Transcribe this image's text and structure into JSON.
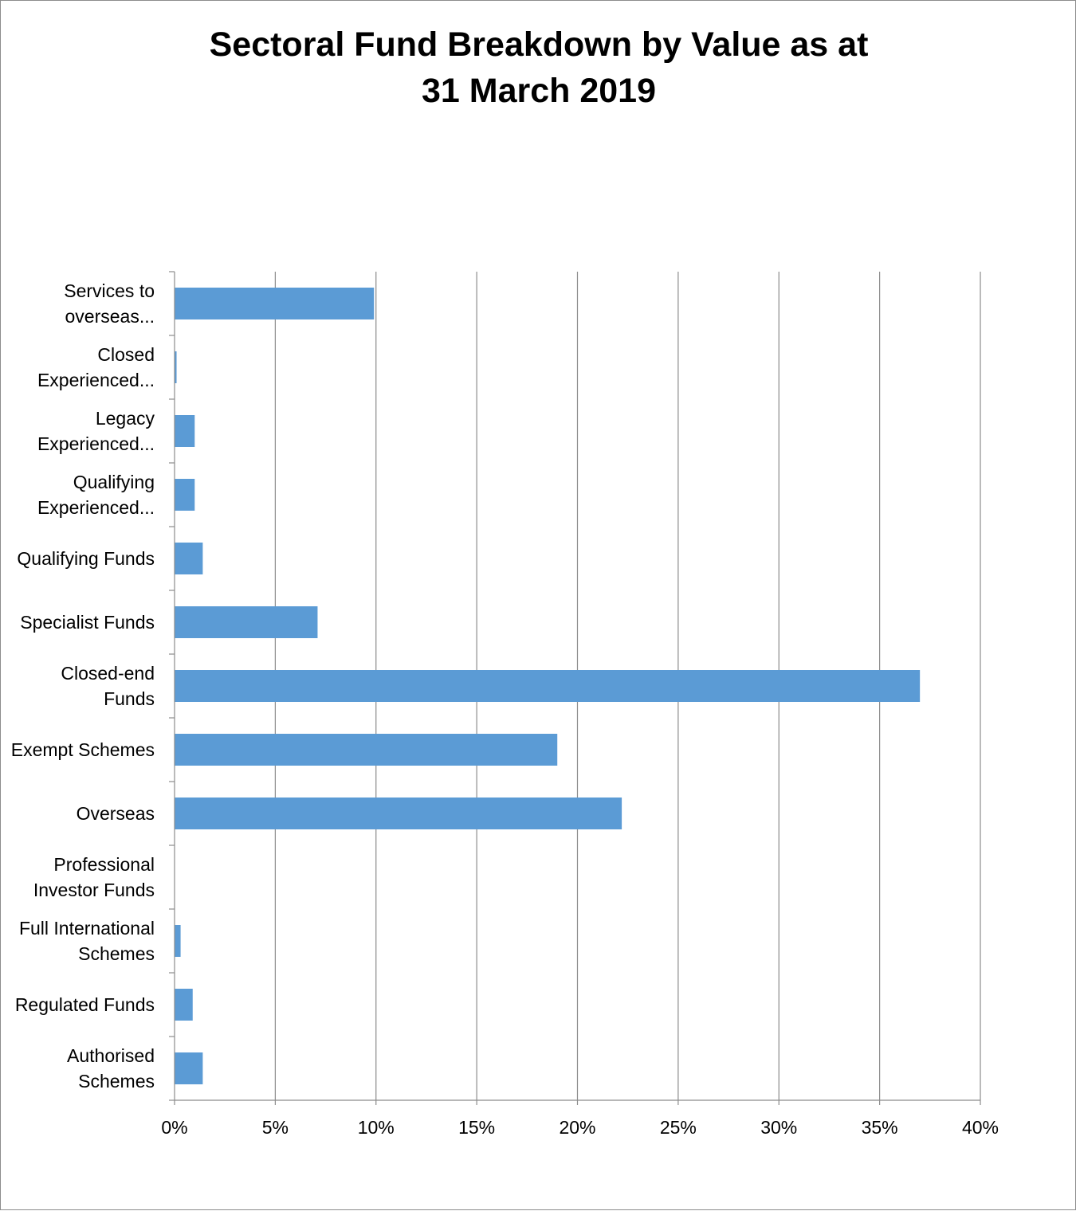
{
  "chart_data": {
    "type": "bar",
    "orientation": "horizontal",
    "title": [
      "Sectoral Fund Breakdown by Value as at",
      "31 March 2019"
    ],
    "xlabel": "",
    "ylabel": "",
    "categories": [
      [
        "Services to",
        "overseas..."
      ],
      [
        "Closed",
        "Experienced..."
      ],
      [
        "Legacy",
        "Experienced..."
      ],
      [
        "Qualifying",
        "Experienced..."
      ],
      [
        "Qualifying Funds"
      ],
      [
        "Specialist Funds"
      ],
      [
        "Closed-end",
        "Funds"
      ],
      [
        "Exempt Schemes"
      ],
      [
        "Overseas"
      ],
      [
        "Professional",
        "Investor Funds"
      ],
      [
        "Full International",
        "Schemes"
      ],
      [
        "Regulated Funds"
      ],
      [
        "Authorised",
        "Schemes"
      ]
    ],
    "values": [
      9.9,
      0.1,
      1.0,
      1.0,
      1.4,
      7.1,
      37.0,
      19.0,
      22.2,
      0.0,
      0.3,
      0.9,
      1.4
    ],
    "xlim": [
      0,
      40
    ],
    "xticks": [
      0,
      5,
      10,
      15,
      20,
      25,
      30,
      35,
      40
    ],
    "xtick_labels": [
      "0%",
      "5%",
      "10%",
      "15%",
      "20%",
      "25%",
      "30%",
      "35%",
      "40%"
    ],
    "grid": true,
    "legend": "none",
    "colors": {
      "bar": "#5b9bd5",
      "grid": "#8c8c8c",
      "axis": "#8c8c8c"
    }
  }
}
